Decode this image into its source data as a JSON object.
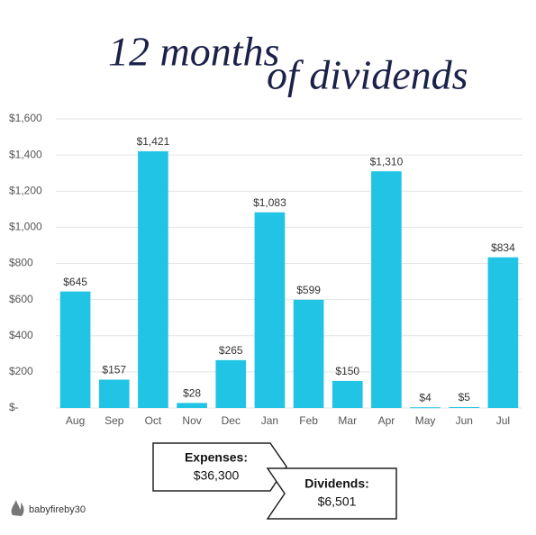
{
  "chart_data": {
    "type": "bar",
    "title": [
      "12 months",
      "of dividends"
    ],
    "categories": [
      "Aug",
      "Sep",
      "Oct",
      "Nov",
      "Dec",
      "Jan",
      "Feb",
      "Mar",
      "Apr",
      "May",
      "Jun",
      "Jul"
    ],
    "values": [
      645,
      157,
      1421,
      28,
      265,
      1083,
      599,
      150,
      1310,
      4,
      5,
      834
    ],
    "value_labels": [
      "$645",
      "$157",
      "$1,421",
      "$28",
      "$265",
      "$1,083",
      "$599",
      "$150",
      "$1,310",
      "$4",
      "$5",
      "$834"
    ],
    "color": "#22c4e6",
    "ylim": [
      0,
      1600
    ],
    "yticks": [
      {
        "value": 0,
        "label": "$-"
      },
      {
        "value": 200,
        "label": "$200"
      },
      {
        "value": 400,
        "label": "$400"
      },
      {
        "value": 600,
        "label": "$600"
      },
      {
        "value": 800,
        "label": "$800"
      },
      {
        "value": 1000,
        "label": "$1,000"
      },
      {
        "value": 1200,
        "label": "$1,200"
      },
      {
        "value": 1400,
        "label": "$1,400"
      },
      {
        "value": 1600,
        "label": "$1,600"
      }
    ],
    "grid": true,
    "annotations": [
      {
        "title": "Expenses:",
        "text": "$36,300"
      },
      {
        "title": "Dividends:",
        "text": "$6,501"
      }
    ],
    "credit": "babyfireby30"
  }
}
